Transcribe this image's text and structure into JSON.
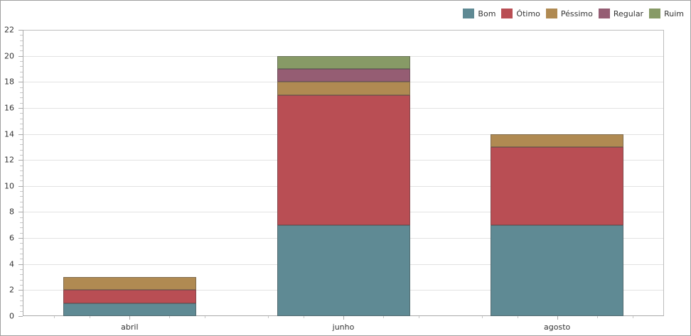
{
  "chart_data": {
    "type": "bar",
    "stacked": true,
    "title": "",
    "xlabel": "",
    "ylabel": "",
    "categories": [
      "abril",
      "junho",
      "agosto"
    ],
    "series": [
      {
        "name": "Bom",
        "color": "#5f8a94",
        "values": [
          1,
          7,
          7
        ]
      },
      {
        "name": "Ótimo",
        "color": "#b94e54",
        "values": [
          1,
          10,
          6
        ]
      },
      {
        "name": "Péssimo",
        "color": "#b08a52",
        "values": [
          1,
          1,
          1
        ]
      },
      {
        "name": "Regular",
        "color": "#955d73",
        "values": [
          0,
          1,
          0
        ]
      },
      {
        "name": "Ruim",
        "color": "#879a66",
        "values": [
          0,
          1,
          0
        ]
      }
    ],
    "totals": [
      3,
      20,
      14
    ],
    "ylim": [
      0,
      22
    ],
    "yticks": [
      0,
      2,
      4,
      6,
      8,
      10,
      12,
      14,
      16,
      18,
      20,
      22
    ],
    "grid": true,
    "legend_position": "top-right"
  },
  "legend": {
    "items": [
      {
        "label": "Bom",
        "color": "#5f8a94"
      },
      {
        "label": "Ótimo",
        "color": "#b94e54"
      },
      {
        "label": "Péssimo",
        "color": "#b08a52"
      },
      {
        "label": "Regular",
        "color": "#955d73"
      },
      {
        "label": "Ruim",
        "color": "#879a66"
      }
    ]
  }
}
